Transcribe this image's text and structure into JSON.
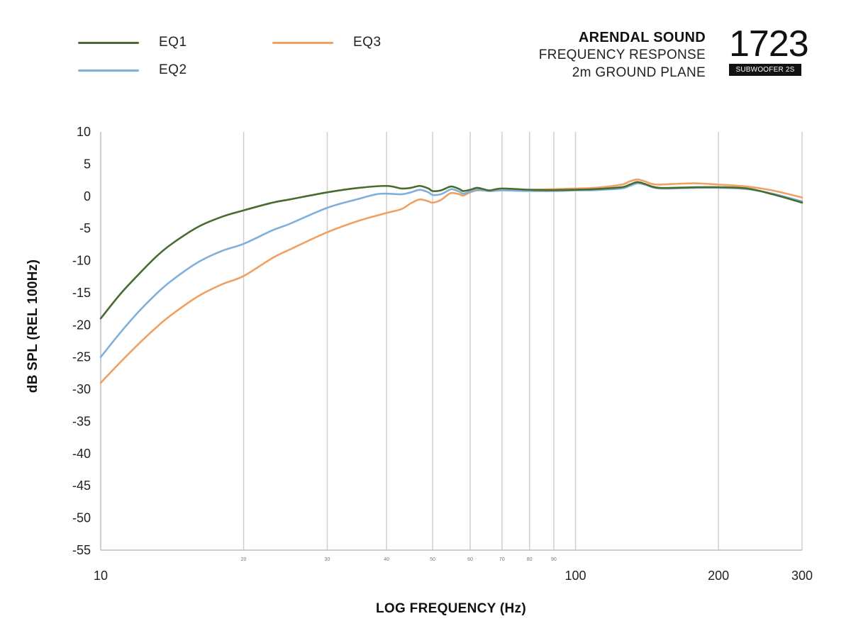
{
  "legend": [
    {
      "name": "EQ1",
      "color": "#4a6b2e"
    },
    {
      "name": "EQ2",
      "color": "#7fb0dc"
    },
    {
      "name": "EQ3",
      "color": "#f0a060"
    }
  ],
  "brand": {
    "name": "ARENDAL SOUND",
    "line1": "FREQUENCY RESPONSE",
    "line2": "2m GROUND PLANE",
    "model_number": "1723",
    "model_badge": "SUBWOOFER 2S"
  },
  "chart_data": {
    "type": "line",
    "xscale": "log",
    "xlim": [
      10,
      300
    ],
    "ylim": [
      -55,
      10
    ],
    "xlabel": "LOG FREQUENCY (Hz)",
    "ylabel": "dB SPL (REL 100Hz)",
    "grid": "vertical",
    "y_ticks": [
      10,
      5,
      0,
      -5,
      -10,
      -15,
      -20,
      -25,
      -30,
      -35,
      -40,
      -45,
      -50,
      -55
    ],
    "x_major_ticks": [
      10,
      100,
      200,
      300
    ],
    "x_minor_ticks": [
      20,
      30,
      40,
      50,
      60,
      70,
      80,
      90
    ],
    "x_gridlines": [
      20,
      30,
      40,
      50,
      60,
      70,
      80,
      90,
      100,
      200
    ],
    "series": [
      {
        "name": "EQ1",
        "color": "#4a6b2e",
        "points": [
          [
            10,
            -19
          ],
          [
            11,
            -15.2
          ],
          [
            12,
            -12.2
          ],
          [
            13,
            -9.6
          ],
          [
            14,
            -7.6
          ],
          [
            16,
            -4.8
          ],
          [
            18,
            -3.2
          ],
          [
            20,
            -2.2
          ],
          [
            23,
            -1
          ],
          [
            25,
            -0.5
          ],
          [
            30,
            0.6
          ],
          [
            35,
            1.3
          ],
          [
            40,
            1.6
          ],
          [
            43,
            1.2
          ],
          [
            45,
            1.3
          ],
          [
            47,
            1.6
          ],
          [
            49,
            1.2
          ],
          [
            50,
            0.8
          ],
          [
            52,
            0.9
          ],
          [
            54,
            1.4
          ],
          [
            55,
            1.5
          ],
          [
            57,
            1.1
          ],
          [
            58,
            0.8
          ],
          [
            60,
            1
          ],
          [
            62,
            1.3
          ],
          [
            64,
            1.1
          ],
          [
            66,
            0.9
          ],
          [
            70,
            1.2
          ],
          [
            80,
            1
          ],
          [
            90,
            0.95
          ],
          [
            100,
            1
          ],
          [
            110,
            1.1
          ],
          [
            125,
            1.4
          ],
          [
            130,
            1.8
          ],
          [
            135,
            2.2
          ],
          [
            140,
            1.9
          ],
          [
            145,
            1.5
          ],
          [
            150,
            1.3
          ],
          [
            160,
            1.3
          ],
          [
            180,
            1.4
          ],
          [
            200,
            1.4
          ],
          [
            230,
            1.2
          ],
          [
            260,
            0.3
          ],
          [
            300,
            -1
          ]
        ]
      },
      {
        "name": "EQ2",
        "color": "#7fb0dc",
        "points": [
          [
            10,
            -25
          ],
          [
            11,
            -21.2
          ],
          [
            12,
            -18
          ],
          [
            13,
            -15.4
          ],
          [
            14,
            -13.3
          ],
          [
            16,
            -10.3
          ],
          [
            18,
            -8.5
          ],
          [
            20,
            -7.4
          ],
          [
            23,
            -5.3
          ],
          [
            25,
            -4.3
          ],
          [
            30,
            -1.8
          ],
          [
            35,
            -0.4
          ],
          [
            38,
            0.3
          ],
          [
            40,
            0.4
          ],
          [
            43,
            0.3
          ],
          [
            45,
            0.6
          ],
          [
            47,
            1
          ],
          [
            49,
            0.6
          ],
          [
            50,
            0.2
          ],
          [
            52,
            0.3
          ],
          [
            54,
            0.9
          ],
          [
            55,
            1.1
          ],
          [
            57,
            0.7
          ],
          [
            58,
            0.4
          ],
          [
            60,
            0.7
          ],
          [
            62,
            1
          ],
          [
            64,
            0.9
          ],
          [
            66,
            0.8
          ],
          [
            70,
            0.9
          ],
          [
            80,
            0.8
          ],
          [
            90,
            0.8
          ],
          [
            100,
            0.9
          ],
          [
            110,
            0.95
          ],
          [
            125,
            1.2
          ],
          [
            130,
            1.6
          ],
          [
            135,
            2
          ],
          [
            140,
            1.8
          ],
          [
            145,
            1.4
          ],
          [
            150,
            1.2
          ],
          [
            160,
            1.2
          ],
          [
            180,
            1.3
          ],
          [
            200,
            1.3
          ],
          [
            230,
            1.1
          ],
          [
            260,
            0.4
          ],
          [
            300,
            -0.8
          ]
        ]
      },
      {
        "name": "EQ3",
        "color": "#f0a060",
        "points": [
          [
            10,
            -29
          ],
          [
            11,
            -25.8
          ],
          [
            12,
            -23
          ],
          [
            13,
            -20.6
          ],
          [
            14,
            -18.6
          ],
          [
            16,
            -15.6
          ],
          [
            18,
            -13.7
          ],
          [
            20,
            -12.4
          ],
          [
            23,
            -9.6
          ],
          [
            25,
            -8.3
          ],
          [
            30,
            -5.6
          ],
          [
            35,
            -3.8
          ],
          [
            40,
            -2.6
          ],
          [
            43,
            -2
          ],
          [
            45,
            -1.1
          ],
          [
            47,
            -0.5
          ],
          [
            49,
            -0.8
          ],
          [
            50,
            -1
          ],
          [
            52,
            -0.6
          ],
          [
            54,
            0.3
          ],
          [
            55,
            0.5
          ],
          [
            57,
            0.3
          ],
          [
            58,
            0.1
          ],
          [
            60,
            0.6
          ],
          [
            62,
            0.9
          ],
          [
            64,
            0.9
          ],
          [
            66,
            0.8
          ],
          [
            70,
            0.9
          ],
          [
            80,
            1
          ],
          [
            90,
            1.1
          ],
          [
            100,
            1.2
          ],
          [
            110,
            1.3
          ],
          [
            125,
            1.8
          ],
          [
            130,
            2.3
          ],
          [
            135,
            2.6
          ],
          [
            140,
            2.3
          ],
          [
            145,
            1.9
          ],
          [
            150,
            1.8
          ],
          [
            160,
            1.9
          ],
          [
            180,
            2
          ],
          [
            200,
            1.8
          ],
          [
            230,
            1.5
          ],
          [
            260,
            0.9
          ],
          [
            300,
            -0.2
          ]
        ]
      }
    ]
  }
}
